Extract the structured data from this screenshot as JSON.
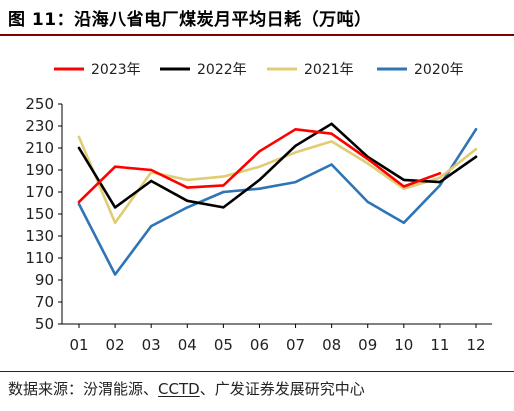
{
  "title": "图 11：沿海八省电厂煤炭月平均日耗（万吨）",
  "footer": {
    "prefix": "数据来源：汾渭能源、",
    "link": "CCTD",
    "suffix": "、广发证券发展研究中心"
  },
  "chart_data": {
    "type": "line",
    "title": "沿海八省电厂煤炭月平均日耗（万吨）",
    "xlabel": "",
    "ylabel": "",
    "x": [
      "01",
      "02",
      "03",
      "04",
      "05",
      "06",
      "07",
      "08",
      "09",
      "10",
      "11",
      "12"
    ],
    "ylim": [
      50,
      250
    ],
    "yticks": [
      50,
      70,
      90,
      110,
      130,
      150,
      170,
      190,
      210,
      230,
      250
    ],
    "grid": false,
    "legend_position": "top",
    "series": [
      {
        "name": "2023年",
        "color": "#ff0000",
        "values": [
          161,
          193,
          190,
          174,
          176,
          207,
          227,
          223,
          200,
          175,
          187,
          null
        ]
      },
      {
        "name": "2022年",
        "color": "#000000",
        "values": [
          210,
          156,
          180,
          162,
          156,
          181,
          212,
          232,
          202,
          181,
          179,
          202
        ]
      },
      {
        "name": "2021年",
        "color": "#e0cc73",
        "values": [
          220,
          142,
          188,
          181,
          184,
          193,
          206,
          216,
          196,
          173,
          183,
          209
        ]
      },
      {
        "name": "2020年",
        "color": "#2f74b5",
        "values": [
          159,
          95,
          139,
          156,
          170,
          173,
          179,
          195,
          161,
          142,
          176,
          227
        ]
      }
    ]
  }
}
